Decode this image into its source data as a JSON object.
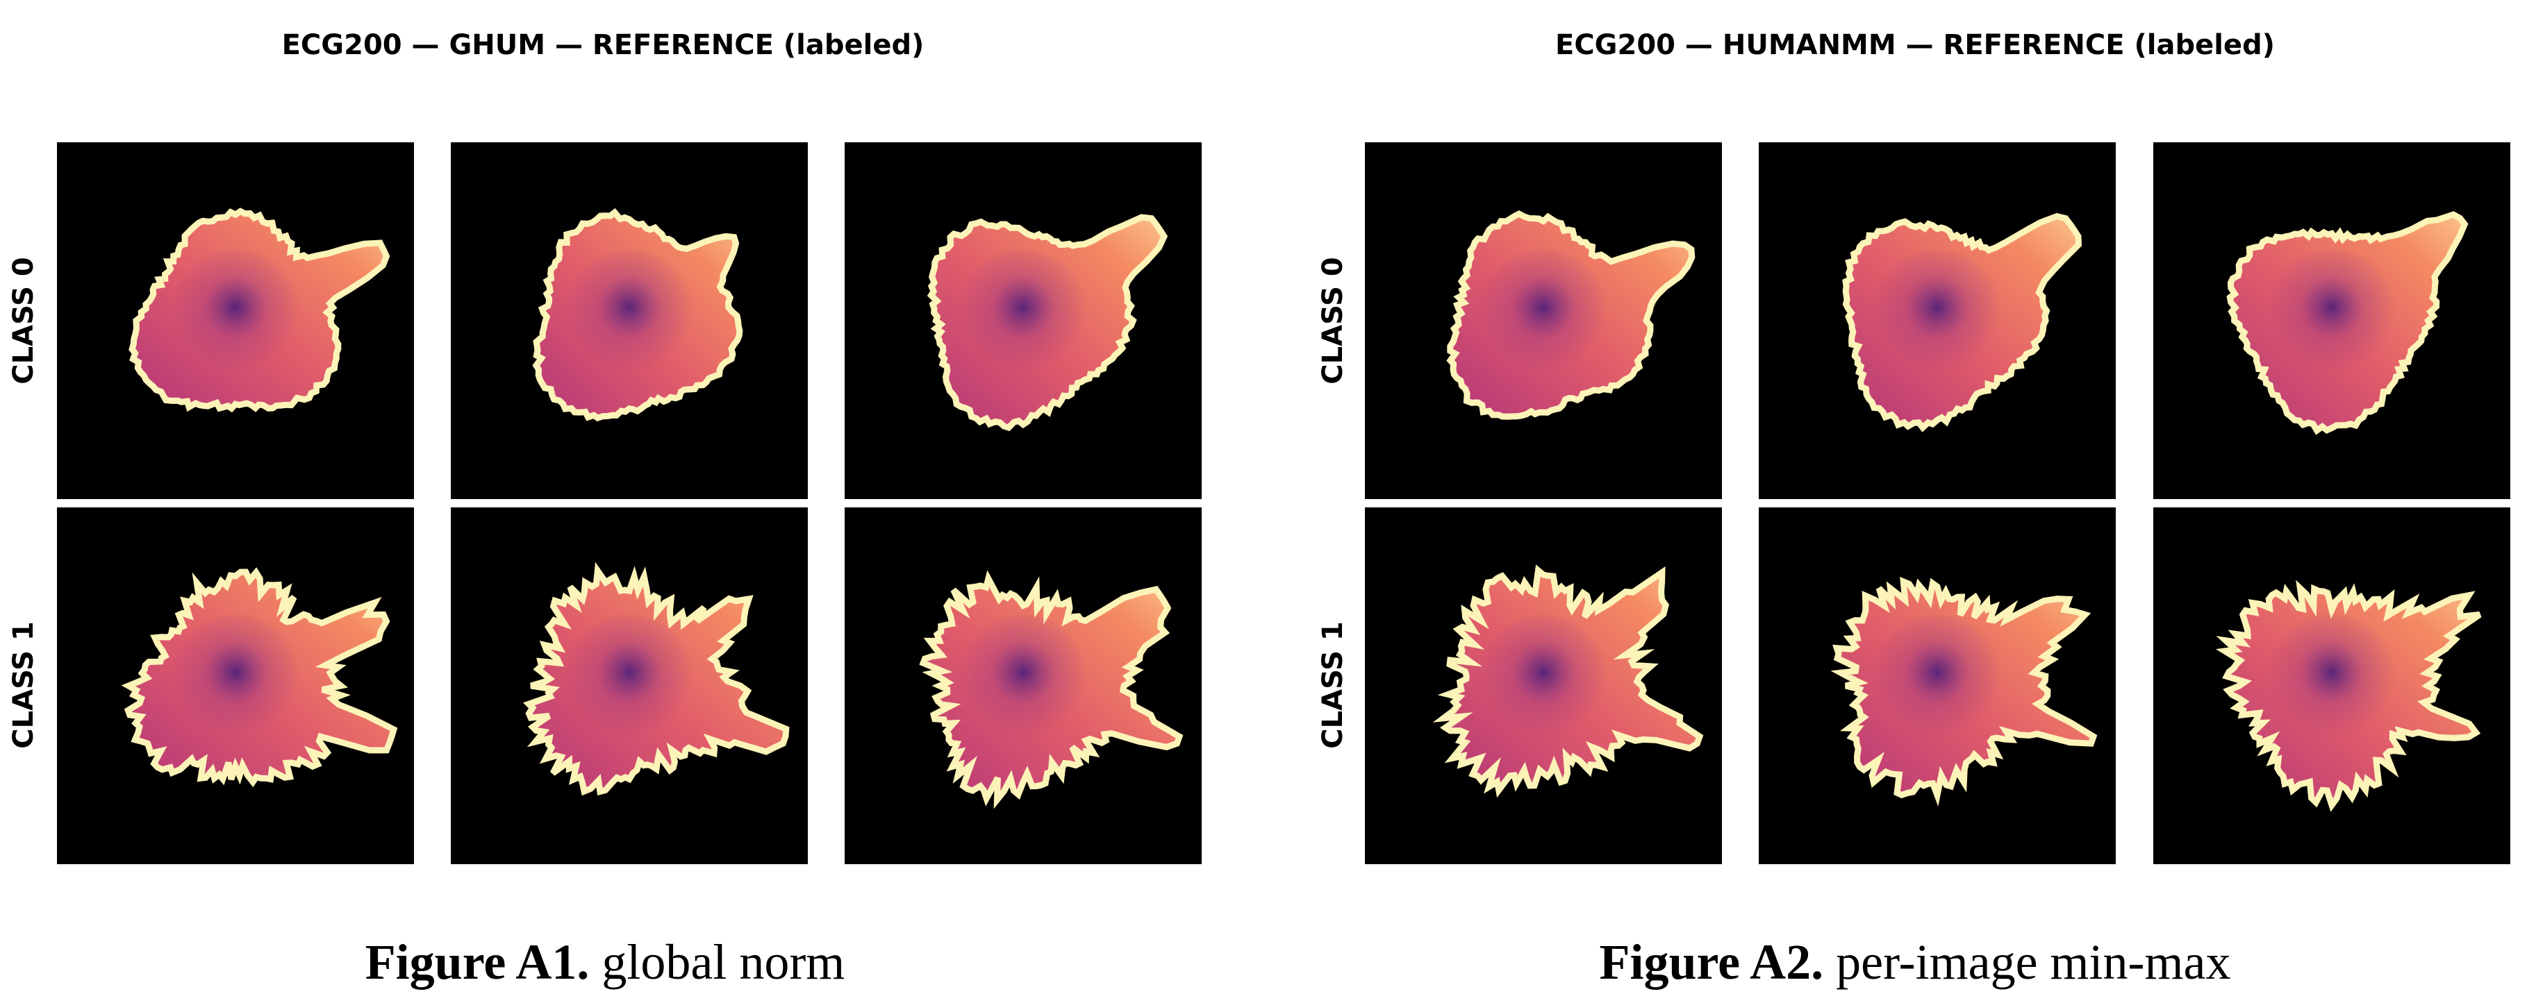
{
  "panels": [
    {
      "title": "ECG200 — GHUM — REFERENCE (labeled)",
      "row_labels": [
        "CLASS 0",
        "CLASS 1"
      ],
      "caption": {
        "label": "Figure A1.",
        "text": "global norm"
      }
    },
    {
      "title": "ECG200 — HUMANMM — REFERENCE (labeled)",
      "row_labels": [
        "CLASS 0",
        "CLASS 1"
      ],
      "caption": {
        "label": "Figure A2.",
        "text": "per-image min-max"
      }
    }
  ]
}
